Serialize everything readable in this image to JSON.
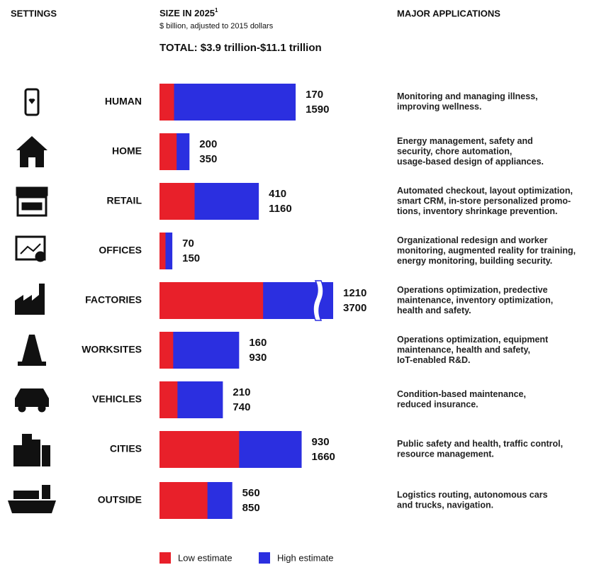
{
  "chart_data": {
    "type": "bar",
    "orientation": "horizontal",
    "column_headers": [
      "SETTINGS",
      "MAJOR APPLICATIONS"
    ],
    "title": "SIZE IN 2025",
    "title_footnote": "1",
    "subtitle": "$ billion, adjusted to 2015 dollars",
    "total": "TOTAL:  $3.9 trillion-$11.1 trillion",
    "categories": [
      "HUMAN",
      "HOME",
      "RETAIL",
      "OFFICES",
      "FACTORIES",
      "WORKSITES",
      "VEHICLES",
      "CITIES",
      "OUTSIDE"
    ],
    "series": [
      {
        "name": "Low estimate",
        "color": "#e8202a",
        "values": [
          170,
          200,
          410,
          70,
          1210,
          160,
          210,
          930,
          560
        ]
      },
      {
        "name": "High estimate",
        "color": "#2b2fe0",
        "values": [
          1590,
          350,
          1160,
          150,
          3700,
          930,
          740,
          1660,
          850
        ]
      }
    ],
    "applications": [
      [
        "Monitoring and managing illness,",
        "improving wellness."
      ],
      [
        "Energy management, safety and",
        "security, chore automation,",
        "usage-based design of appliances."
      ],
      [
        "Automated checkout, layout optimization,",
        "smart CRM, in-store personalized promo-",
        "tions, inventory shrinkage prevention."
      ],
      [
        "Organizational redesign and worker",
        "monitoring, augmented reality for training,",
        "energy monitoring, building security."
      ],
      [
        "Operations optimization, predective",
        "maintenance, inventory optimization,",
        "health and safety."
      ],
      [
        "Operations optimization, equipment",
        "maintenance, health and safety,",
        "IoT-enabled R&D."
      ],
      [
        "Condition-based maintenance,",
        "reduced insurance."
      ],
      [
        "Public safety and health, traffic control,",
        "resource management."
      ],
      [
        "Logistics routing, autonomous cars",
        "and trucks, navigation."
      ]
    ],
    "legend": "bottom"
  }
}
